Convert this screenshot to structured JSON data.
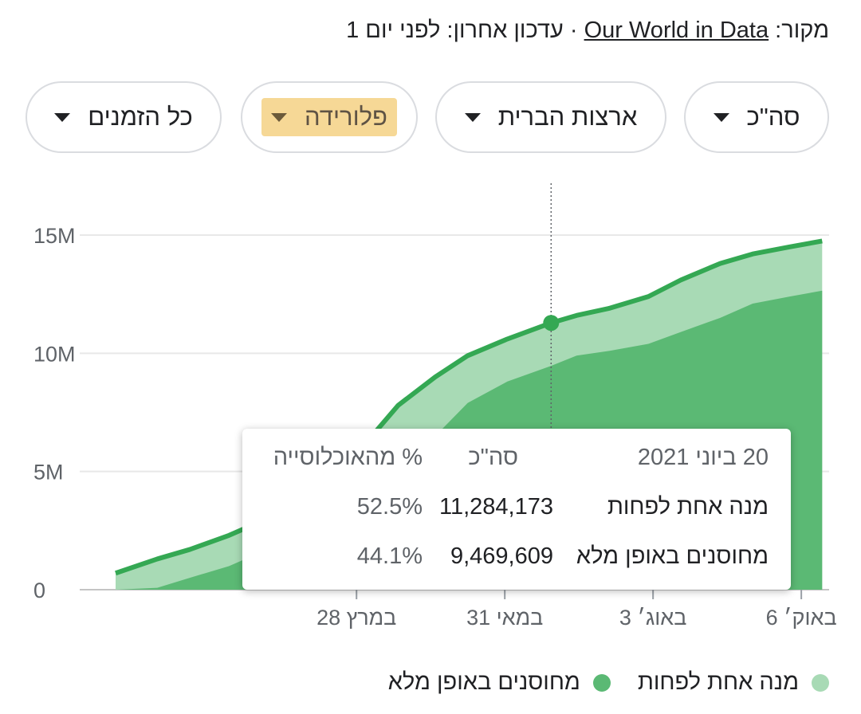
{
  "source": {
    "prefix": "מקור:",
    "link": "Our World in Data",
    "suffix": "· עדכון אחרון: לפני יום 1"
  },
  "filters": [
    {
      "label": "סה\"כ"
    },
    {
      "label": "ארצות הברית"
    },
    {
      "label": "פלורידה",
      "highlighted": true
    },
    {
      "label": "כל הזמנים"
    }
  ],
  "tooltip": {
    "date": "20 ביוני 2021",
    "col_total": "סה\"כ",
    "col_pct": "% מהאוכלוסייה",
    "rows": [
      {
        "label": "מנה אחת לפחות",
        "value": "11,284,173",
        "pct": "52.5%"
      },
      {
        "label": "מחוסנים באופן מלא",
        "value": "9,469,609",
        "pct": "44.1%"
      }
    ]
  },
  "legend": [
    {
      "label": "מנה אחת לפחות",
      "color": "#a8dab5"
    },
    {
      "label": "מחוסנים באופן מלא",
      "color": "#5bb974"
    }
  ],
  "chart_data": {
    "type": "area",
    "x_tick_labels": [
      "28 במרץ",
      "31 במאי",
      "3 באוג׳",
      "6 באוק׳"
    ],
    "y_tick_labels": [
      "0",
      "5M",
      "10M",
      "15M"
    ],
    "ylim": [
      0,
      16000000
    ],
    "x": [
      "2020-12-14",
      "2021-01-01",
      "2021-01-15",
      "2021-02-01",
      "2021-02-15",
      "2021-03-01",
      "2021-03-15",
      "2021-04-01",
      "2021-04-15",
      "2021-05-01",
      "2021-05-15",
      "2021-06-01",
      "2021-06-20",
      "2021-07-01",
      "2021-07-15",
      "2021-08-01",
      "2021-08-15",
      "2021-09-01",
      "2021-09-15",
      "2021-10-01",
      "2021-10-15"
    ],
    "series": [
      {
        "name": "מנה אחת לפחות",
        "color": "#a8dab5",
        "line_color": "#34a853",
        "values": [
          700000,
          1300000,
          1700000,
          2300000,
          2900000,
          3700000,
          4700000,
          6200000,
          7800000,
          9000000,
          9900000,
          10600000,
          11284173,
          11600000,
          11900000,
          12400000,
          13100000,
          13800000,
          14200000,
          14500000,
          14750000
        ]
      },
      {
        "name": "מחוסנים באופן מלא",
        "color": "#5bb974",
        "values": [
          0,
          80000,
          500000,
          1000000,
          1600000,
          2000000,
          2500000,
          3500000,
          5000000,
          6500000,
          7900000,
          8800000,
          9469609,
          9900000,
          10100000,
          10400000,
          10900000,
          11500000,
          12100000,
          12400000,
          12650000
        ]
      }
    ],
    "highlight_x": "2021-06-20",
    "grid": true
  }
}
